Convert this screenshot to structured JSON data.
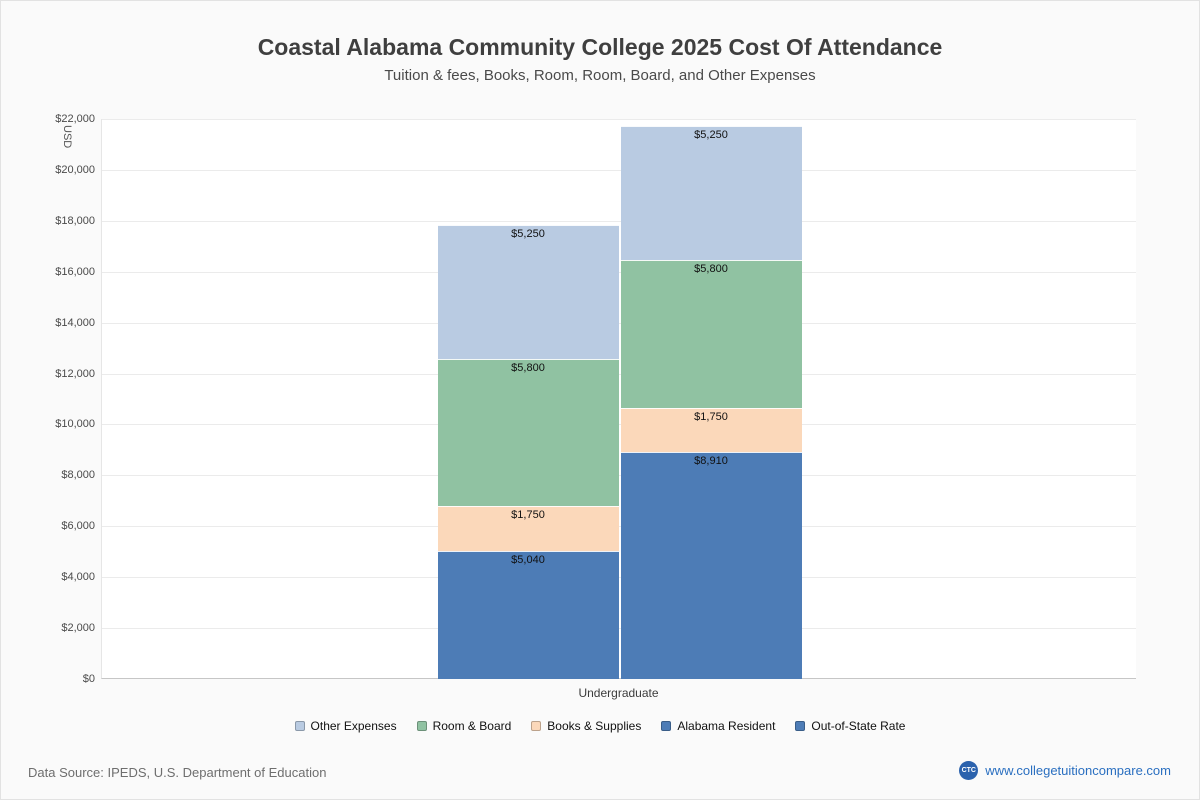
{
  "page": {
    "title": "Coastal Alabama Community College 2025 Cost Of Attendance",
    "subtitle": "Tuition & fees, Books, Room, Room, Board, and Other Expenses",
    "footer": {
      "data_source": "Data Source: IPEDS, U.S. Department of Education",
      "logo_text": "CTC",
      "website": "www.collegetuitioncompare.com"
    }
  },
  "chart_data": {
    "type": "bar",
    "stacked": true,
    "title": "Coastal Alabama Community College 2025 Cost Of Attendance",
    "subtitle": "Tuition & fees, Books, Room, Room, Board, and Other Expenses",
    "ylabel": "USD",
    "xlabel": "",
    "categories": [
      "Undergraduate"
    ],
    "ylim": [
      0,
      22000
    ],
    "grid": true,
    "legend_position": "bottom",
    "yticks": [
      {
        "value": 0,
        "label": "$0"
      },
      {
        "value": 2000,
        "label": "$2,000"
      },
      {
        "value": 4000,
        "label": "$4,000"
      },
      {
        "value": 6000,
        "label": "$6,000"
      },
      {
        "value": 8000,
        "label": "$8,000"
      },
      {
        "value": 10000,
        "label": "$10,000"
      },
      {
        "value": 12000,
        "label": "$12,000"
      },
      {
        "value": 14000,
        "label": "$14,000"
      },
      {
        "value": 16000,
        "label": "$16,000"
      },
      {
        "value": 18000,
        "label": "$18,000"
      },
      {
        "value": 20000,
        "label": "$20,000"
      },
      {
        "value": 22000,
        "label": "$22,000"
      }
    ],
    "bars": [
      {
        "name": "Alabama Resident total",
        "total": 17840,
        "segments": [
          {
            "label": "Alabama Resident",
            "value": 5040,
            "data_label": "$5,040",
            "color": "#4d7cb6"
          },
          {
            "label": "Books & Supplies",
            "value": 1750,
            "data_label": "$1,750",
            "color": "#fbd8ba"
          },
          {
            "label": "Room & Board",
            "value": 5800,
            "data_label": "$5,800",
            "color": "#90c2a2"
          },
          {
            "label": "Other Expenses",
            "value": 5250,
            "data_label": "$5,250",
            "color": "#b9cbe2"
          }
        ]
      },
      {
        "name": "Out-of-State total",
        "total": 21710,
        "segments": [
          {
            "label": "Out-of-State Rate",
            "value": 8910,
            "data_label": "$8,910",
            "color": "#4d7cb6"
          },
          {
            "label": "Books & Supplies",
            "value": 1750,
            "data_label": "$1,750",
            "color": "#fbd8ba"
          },
          {
            "label": "Room & Board",
            "value": 5800,
            "data_label": "$5,800",
            "color": "#90c2a2"
          },
          {
            "label": "Other Expenses",
            "value": 5250,
            "data_label": "$5,250",
            "color": "#b9cbe2"
          }
        ]
      }
    ],
    "legend": [
      {
        "label": "Other Expenses",
        "color": "#b9cbe2"
      },
      {
        "label": "Room & Board",
        "color": "#90c2a2"
      },
      {
        "label": "Books & Supplies",
        "color": "#fbd8ba"
      },
      {
        "label": "Alabama Resident",
        "color": "#4d7cb6"
      },
      {
        "label": "Out-of-State Rate",
        "color": "#4d7cb6"
      }
    ]
  }
}
